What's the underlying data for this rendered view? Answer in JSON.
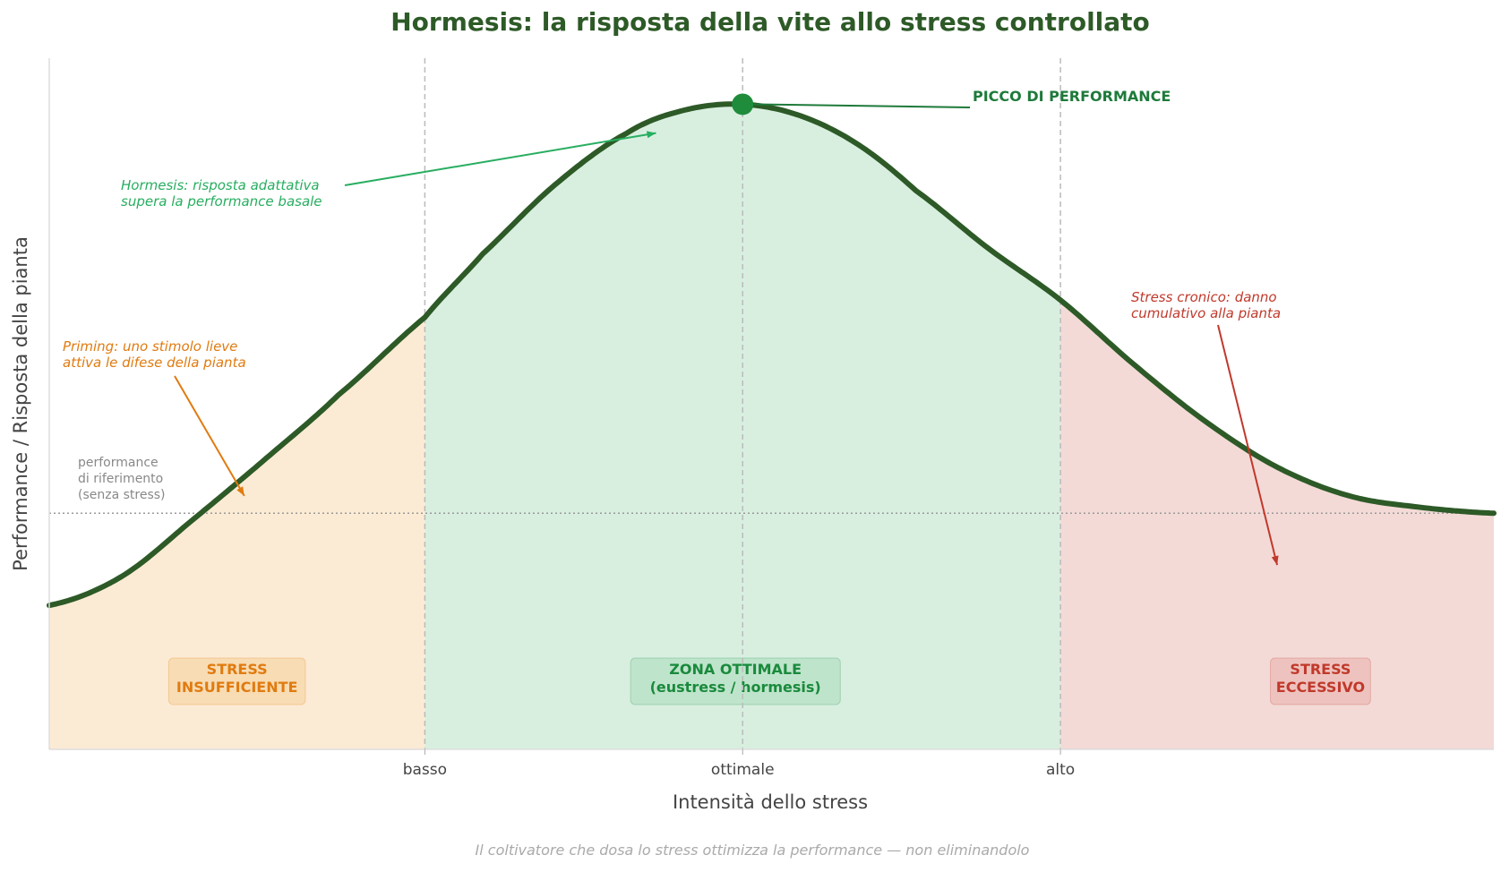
{
  "chart_data": {
    "type": "area",
    "title": "Hormesis: la risposta della vite allo stress controllato",
    "xlabel": "Intensità dello stress",
    "ylabel": "Performance / Risposta della pianta",
    "xlim": [
      0,
      10
    ],
    "ylim": [
      -0.1,
      1.1
    ],
    "x_ticks": [
      {
        "value": 2.6,
        "label": "basso"
      },
      {
        "value": 4.8,
        "label": "ottimale"
      },
      {
        "value": 7.0,
        "label": "alto"
      }
    ],
    "curve": {
      "name": "Performance",
      "x": [
        0,
        0.5,
        1,
        1.5,
        2,
        2.6,
        3,
        3.5,
        4,
        4.4,
        4.8,
        5.2,
        5.6,
        6,
        6.5,
        7,
        7.5,
        8,
        8.5,
        9,
        9.5,
        10
      ],
      "y": [
        0.15,
        0.2,
        0.3,
        0.405,
        0.515,
        0.65,
        0.76,
        0.88,
        0.97,
        1.01,
        1.02,
        1.0,
        0.95,
        0.87,
        0.77,
        0.68,
        0.57,
        0.47,
        0.39,
        0.34,
        0.32,
        0.31
      ]
    },
    "reference_line": {
      "y": 0.31,
      "label": "performance\ndi riferimento\n(senza stress)"
    },
    "peak": {
      "x": 4.8,
      "y": 1.02,
      "label": "PICCO DI PERFORMANCE"
    },
    "zones": [
      {
        "x0": 0,
        "x1": 2.6,
        "label": "STRESS\nINSUFFICIENTE",
        "fill": "#fcebd4",
        "text_color": "#e07b10",
        "box": "#f8dcb4"
      },
      {
        "x0": 2.6,
        "x1": 7.0,
        "label": "ZONA OTTIMALE\n(eustress / hormesis)",
        "fill": "#d8efe0",
        "text_color": "#1a8a3c",
        "box": "#bfe4cc"
      },
      {
        "x0": 7.0,
        "x1": 10,
        "label": "STRESS\nECCESSIVO",
        "fill": "#f3dad7",
        "text_color": "#c0392b",
        "box": "#eec3bf"
      }
    ],
    "annotations": [
      {
        "text": "Hormesis: risposta adattativa\nsupera la performance basale",
        "color": "#27ae60",
        "target": [
          4.2,
          0.97
        ]
      },
      {
        "text": "Priming: uno stimolo lieve\nattiva le difese della pianta",
        "color": "#e07b10",
        "target": [
          1.35,
          0.34
        ]
      },
      {
        "text": "Stress cronico: danno\ncumulativo alla pianta",
        "color": "#c0392b",
        "target": [
          8.5,
          0.22
        ]
      }
    ],
    "grid": false,
    "colors": {
      "curve": "#2d5a27",
      "title": "#2d5a27",
      "peak": "#1e8c3a",
      "peak_label": "#1e7a3a",
      "divider": "#bbbbbb",
      "reference": "#999999"
    }
  },
  "footer": "Il coltivatore che dosa lo stress ottimizza la performance — non eliminandolo"
}
